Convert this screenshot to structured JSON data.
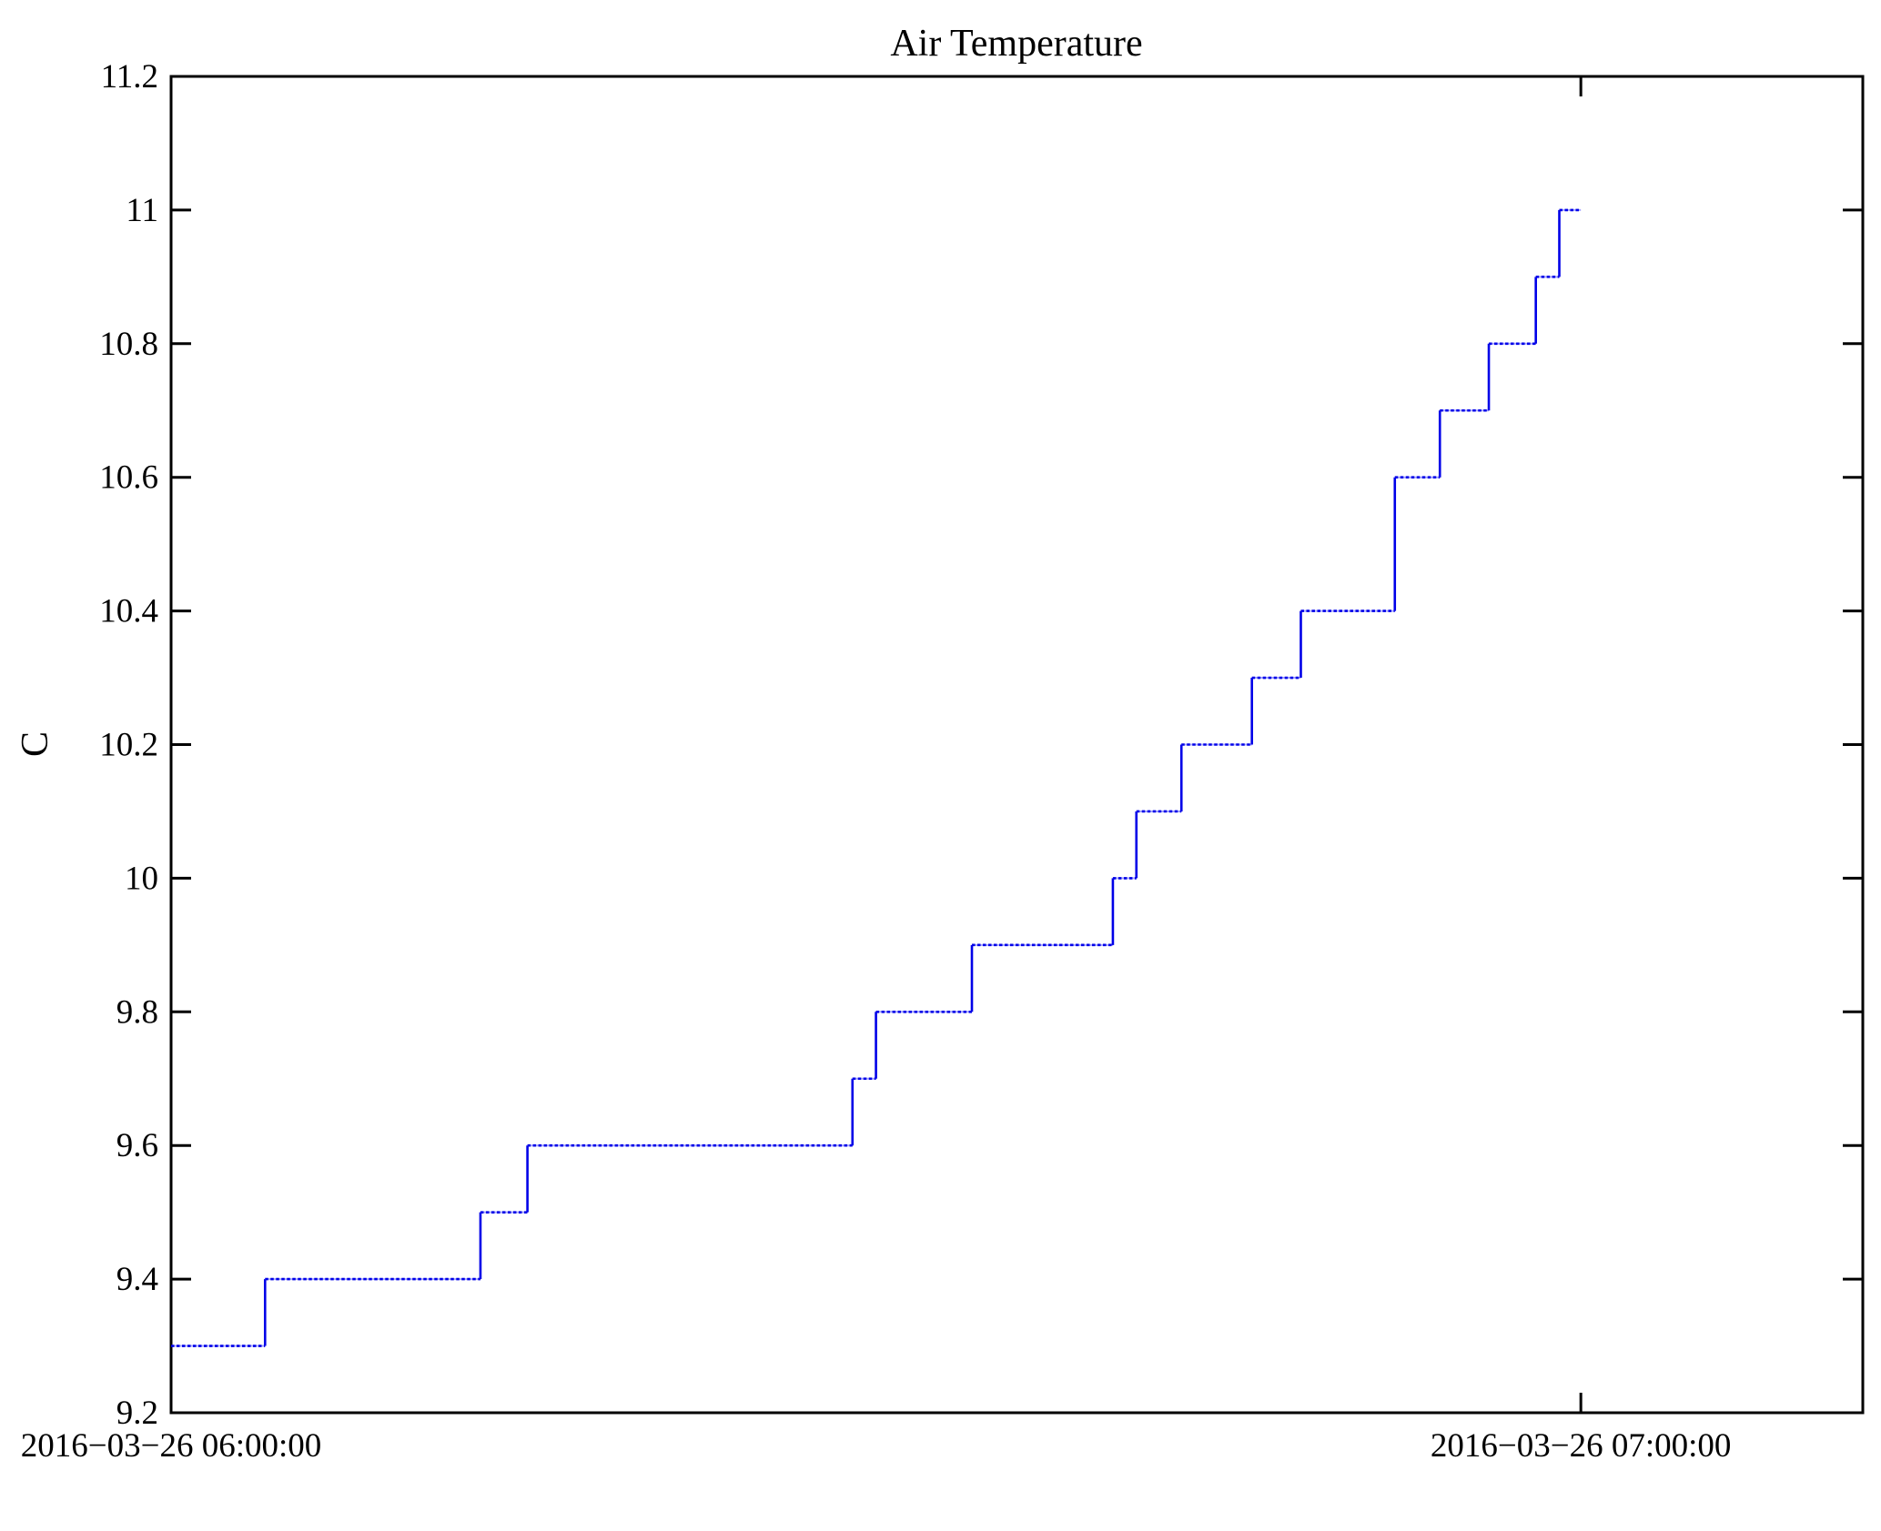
{
  "chart_data": {
    "type": "line",
    "line_style": "step-post",
    "title": "Air Temperature",
    "ylabel": "C",
    "xlabel": "",
    "grid": false,
    "legend": null,
    "background": "#ffffff",
    "axis_color": "#000000",
    "line_color": "#0000e8",
    "line_color_light": "#a8a8ff",
    "ylim": [
      9.2,
      11.2
    ],
    "ytick_step": 0.2,
    "yticks": [
      {
        "v": 9.2,
        "label": "9.2"
      },
      {
        "v": 9.4,
        "label": "9.4"
      },
      {
        "v": 9.6,
        "label": "9.6"
      },
      {
        "v": 9.8,
        "label": "9.8"
      },
      {
        "v": 10,
        "label": "10"
      },
      {
        "v": 10.2,
        "label": "10.2"
      },
      {
        "v": 10.4,
        "label": "10.4"
      },
      {
        "v": 10.6,
        "label": "10.6"
      },
      {
        "v": 10.8,
        "label": "10.8"
      },
      {
        "v": 11,
        "label": "11"
      },
      {
        "v": 11.2,
        "label": "11.2"
      }
    ],
    "xlim": [
      "06:00:00",
      "07:12:00"
    ],
    "xticks": [
      {
        "t": "06:00:00",
        "label": "2016−03−26 06:00:00"
      },
      {
        "t": "07:00:00",
        "label": "2016−03−26 07:00:00"
      }
    ],
    "x_date": "2016-03-26",
    "unit": "C",
    "points": [
      [
        "06:00:00",
        9.3
      ],
      [
        "06:04:00",
        9.4
      ],
      [
        "06:13:10",
        9.5
      ],
      [
        "06:15:10",
        9.6
      ],
      [
        "06:29:00",
        9.7
      ],
      [
        "06:30:00",
        9.8
      ],
      [
        "06:34:05",
        9.9
      ],
      [
        "06:40:05",
        10.0
      ],
      [
        "06:41:05",
        10.1
      ],
      [
        "06:43:00",
        10.2
      ],
      [
        "06:46:00",
        10.3
      ],
      [
        "06:48:05",
        10.4
      ],
      [
        "06:52:05",
        10.6
      ],
      [
        "06:54:00",
        10.7
      ],
      [
        "06:56:05",
        10.8
      ],
      [
        "06:58:05",
        10.9
      ],
      [
        "06:59:05",
        11.0
      ]
    ],
    "end_time": "07:00:00"
  }
}
